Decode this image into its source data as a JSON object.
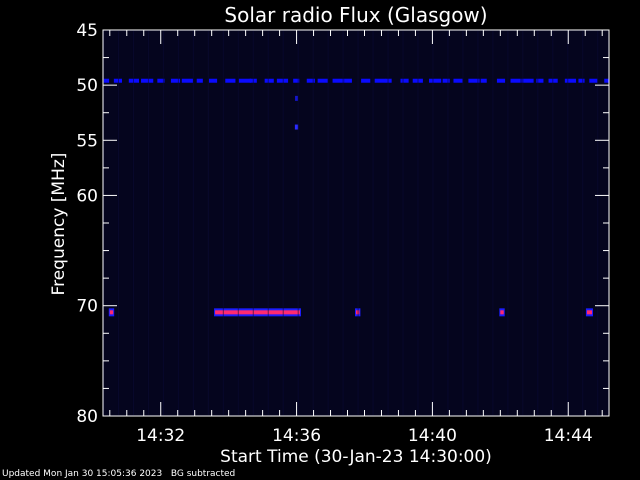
{
  "chart_data": {
    "type": "heatmap",
    "title": "Solar radio Flux (Glasgow)",
    "xlabel": "Start Time (30-Jan-23 14:30:00)",
    "ylabel": "Frequency [MHz]",
    "xlim_minutes": [
      30.3,
      45.2
    ],
    "xticks": [
      {
        "label": "14:32",
        "value": 32
      },
      {
        "label": "14:36",
        "value": 36
      },
      {
        "label": "14:40",
        "value": 40
      },
      {
        "label": "14:44",
        "value": 44
      }
    ],
    "ylim": [
      45,
      80
    ],
    "yticks": [
      {
        "label": "45",
        "value": 45
      },
      {
        "label": "50",
        "value": 50
      },
      {
        "label": "55",
        "value": 55
      },
      {
        "label": "60",
        "value": 60
      },
      {
        "label": "70",
        "value": 70
      },
      {
        "label": "80",
        "value": 80
      }
    ],
    "colors": {
      "background": "#000000",
      "plot_background": "#05051e",
      "axes": "#ffffff",
      "low_intensity": "#0a0aff",
      "high_intensity": "#ff2a6e"
    },
    "features": [
      {
        "name": "constant 49.6 MHz emission",
        "frequency_mhz": 49.6,
        "time_start": 30.3,
        "time_end": 45.2,
        "intensity": "medium"
      },
      {
        "name": "burst 70.6 MHz",
        "frequency_mhz": 70.6,
        "time_start": 33.6,
        "time_end": 36.1,
        "intensity": "high"
      },
      {
        "name": "blip 70.6 MHz",
        "frequency_mhz": 70.6,
        "time_start": 30.5,
        "time_end": 30.6,
        "intensity": "high"
      },
      {
        "name": "blip 70.6 MHz",
        "frequency_mhz": 70.6,
        "time_start": 37.75,
        "time_end": 37.85,
        "intensity": "high"
      },
      {
        "name": "blip 70.6 MHz",
        "frequency_mhz": 70.6,
        "time_start": 42.0,
        "time_end": 42.1,
        "intensity": "high"
      },
      {
        "name": "blip 70.6 MHz",
        "frequency_mhz": 70.6,
        "time_start": 44.55,
        "time_end": 44.7,
        "intensity": "high"
      },
      {
        "name": "spot 53.8 MHz",
        "frequency_mhz": 53.8,
        "time_start": 35.95,
        "time_end": 36.05,
        "intensity": "medium"
      },
      {
        "name": "spot 51.2 MHz",
        "frequency_mhz": 51.2,
        "time_start": 35.97,
        "time_end": 36.03,
        "intensity": "low"
      }
    ]
  },
  "footer": {
    "updated": "Updated Mon Jan 30 15:05:36 2023",
    "bg_note": "BG subtracted"
  }
}
